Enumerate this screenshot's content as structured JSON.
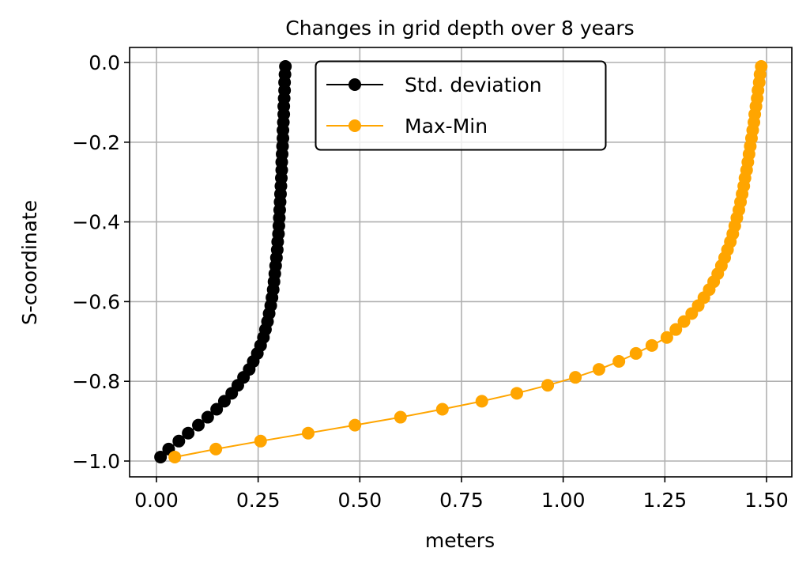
{
  "chart_data": {
    "type": "line",
    "title": "Changes in grid depth over 8 years",
    "xlabel": "meters",
    "ylabel": "S-coordinate",
    "xlim": [
      -0.065,
      1.56
    ],
    "ylim": [
      -1.04,
      0.04
    ],
    "xticks": [
      0.0,
      0.25,
      0.5,
      0.75,
      1.0,
      1.25,
      1.5
    ],
    "xtick_labels": [
      "0.00",
      "0.25",
      "0.50",
      "0.75",
      "1.00",
      "1.25",
      "1.50"
    ],
    "yticks": [
      0.0,
      -0.2,
      -0.4,
      -0.6,
      -0.8,
      -1.0
    ],
    "ytick_labels": [
      "0.0",
      "−0.2",
      "−0.4",
      "−0.6",
      "−0.8",
      "−1.0"
    ],
    "grid": true,
    "legend_position": "top-center",
    "y": [
      -0.99,
      -0.97,
      -0.95,
      -0.93,
      -0.91,
      -0.89,
      -0.87,
      -0.85,
      -0.83,
      -0.81,
      -0.79,
      -0.77,
      -0.75,
      -0.73,
      -0.71,
      -0.69,
      -0.67,
      -0.65,
      -0.63,
      -0.61,
      -0.59,
      -0.57,
      -0.55,
      -0.53,
      -0.51,
      -0.49,
      -0.47,
      -0.45,
      -0.43,
      -0.41,
      -0.39,
      -0.37,
      -0.35,
      -0.33,
      -0.31,
      -0.29,
      -0.27,
      -0.25,
      -0.23,
      -0.21,
      -0.19,
      -0.17,
      -0.15,
      -0.13,
      -0.11,
      -0.09,
      -0.07,
      -0.05,
      -0.03,
      -0.01
    ],
    "series": [
      {
        "name": "Std. deviation",
        "color": "#000000",
        "marker": "circle",
        "values": [
          0.01,
          0.03,
          0.055,
          0.078,
          0.103,
          0.126,
          0.148,
          0.167,
          0.185,
          0.2,
          0.214,
          0.228,
          0.238,
          0.248,
          0.256,
          0.263,
          0.268,
          0.273,
          0.277,
          0.281,
          0.284,
          0.287,
          0.289,
          0.291,
          0.293,
          0.295,
          0.297,
          0.298,
          0.3,
          0.301,
          0.302,
          0.303,
          0.304,
          0.305,
          0.306,
          0.307,
          0.308,
          0.308,
          0.309,
          0.31,
          0.311,
          0.311,
          0.312,
          0.313,
          0.313,
          0.314,
          0.315,
          0.315,
          0.316,
          0.317
        ]
      },
      {
        "name": "Max-Min",
        "color": "#ffa500",
        "marker": "circle",
        "values": [
          0.045,
          0.146,
          0.256,
          0.373,
          0.488,
          0.6,
          0.703,
          0.8,
          0.886,
          0.962,
          1.03,
          1.088,
          1.137,
          1.179,
          1.218,
          1.255,
          1.277,
          1.297,
          1.316,
          1.332,
          1.346,
          1.359,
          1.37,
          1.38,
          1.389,
          1.397,
          1.404,
          1.411,
          1.417,
          1.422,
          1.427,
          1.432,
          1.436,
          1.44,
          1.444,
          1.447,
          1.451,
          1.454,
          1.457,
          1.46,
          1.463,
          1.466,
          1.469,
          1.471,
          1.474,
          1.477,
          1.479,
          1.482,
          1.484,
          1.487
        ]
      }
    ]
  }
}
